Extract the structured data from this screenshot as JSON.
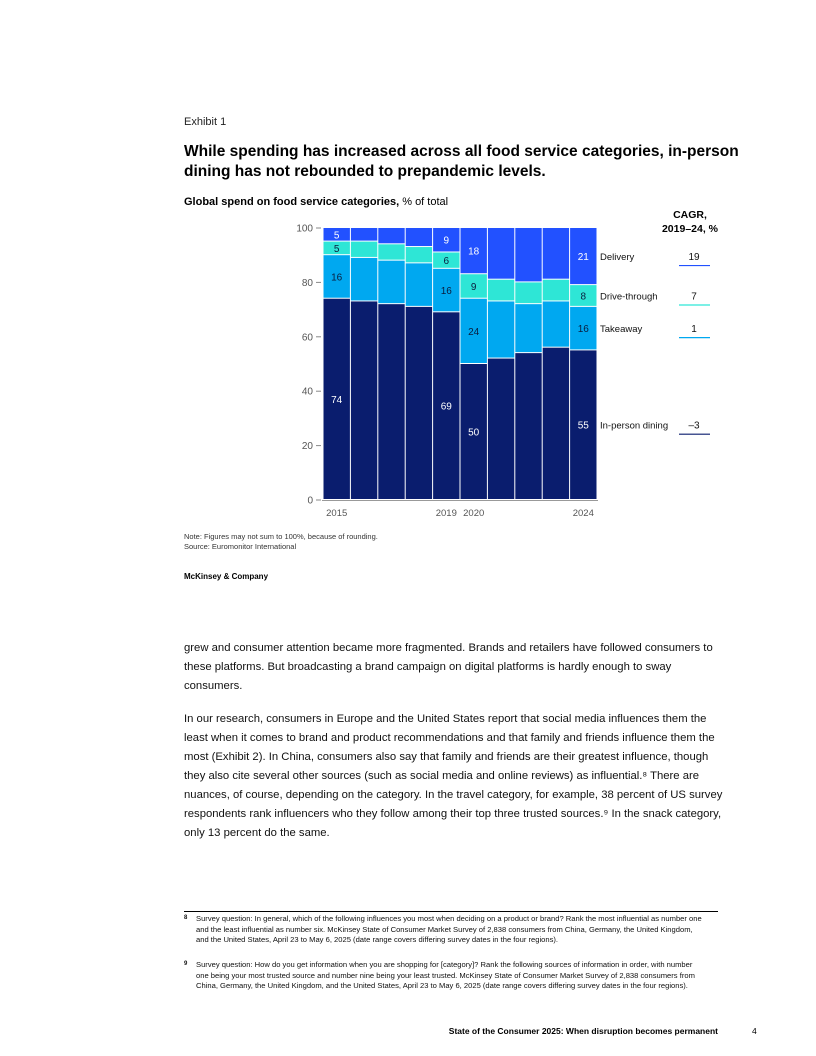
{
  "exhibit_label": "Exhibit 1",
  "title": "While spending has increased across all food service categories, in-person dining has not rebounded to prepandemic levels.",
  "subtitle_bold": "Global spend on food service categories,",
  "subtitle_rest": " % of total",
  "cagr_header": [
    "CAGR,",
    "2019–24, %"
  ],
  "chart_data": {
    "type": "bar",
    "stacked": true,
    "title": "Global spend on food service categories, % of total",
    "categories": [
      "2015",
      "2016",
      "2017",
      "2018",
      "2019",
      "2020",
      "2021",
      "2022",
      "2023",
      "2024"
    ],
    "x_tick_labels": [
      "2015",
      "",
      "",
      "",
      "2019",
      "2020",
      "",
      "",
      "",
      "2024"
    ],
    "ylim": [
      0,
      100
    ],
    "y_ticks": [
      0,
      20,
      40,
      60,
      80,
      100
    ],
    "grid": false,
    "series": [
      {
        "name": "In-person dining",
        "color": "#0a1d6e",
        "label_color": "#ffffff",
        "cagr": "–3",
        "values": [
          74,
          73,
          72,
          71,
          69,
          50,
          52,
          54,
          56,
          55
        ],
        "labels": [
          "74",
          null,
          null,
          null,
          "69",
          "50",
          null,
          null,
          null,
          "55"
        ]
      },
      {
        "name": "Takeaway",
        "color": "#00a8f0",
        "label_color": "#0a1d3e",
        "cagr": "1",
        "values": [
          16,
          16,
          16,
          16,
          16,
          24,
          21,
          18,
          17,
          16
        ],
        "labels": [
          "16",
          null,
          null,
          null,
          "16",
          "24",
          null,
          null,
          null,
          "16"
        ]
      },
      {
        "name": "Drive-through",
        "color": "#2ee6d6",
        "label_color": "#0a1d3e",
        "cagr": "7",
        "values": [
          5,
          6,
          6,
          6,
          6,
          9,
          8,
          8,
          8,
          8
        ],
        "labels": [
          "5",
          null,
          null,
          null,
          "6",
          "9",
          null,
          null,
          null,
          "8"
        ]
      },
      {
        "name": "Delivery",
        "color": "#2251ff",
        "label_color": "#ffffff",
        "cagr": "19",
        "values": [
          5,
          5,
          6,
          7,
          9,
          18,
          19,
          20,
          20,
          21
        ],
        "labels": [
          "5",
          null,
          null,
          null,
          "9",
          "18",
          null,
          null,
          null,
          "21"
        ]
      }
    ]
  },
  "note": "Note: Figures may not sum to 100%, because of rounding.",
  "source": "Source: Euromonitor International",
  "brand": "McKinsey & Company",
  "body": [
    "grew and consumer attention became more fragmented. Brands and retailers have followed consumers to these platforms. But broadcasting a brand campaign on digital platforms is hardly enough to sway consumers.",
    "In our research, consumers in Europe and the United States report that social media influences them the least when it comes to brand and product recommendations and that family and friends influence them the most (Exhibit 2). In China, consumers also say that family and friends are their greatest influence, though they also cite several other sources (such as social media and online reviews) as influential.⁸ There are nuances, of course, depending on the category. In the travel category, for example, 38 percent of US survey respondents rank influencers who they follow among their top three trusted sources.⁹ In the snack category, only 13 percent do the same."
  ],
  "footnotes": [
    {
      "num": "8",
      "text": "Survey question: In general, which of the following influences you most when deciding on a product or brand? Rank the most influential as number one and the least influential as number six. McKinsey State of Consumer Market Survey of 2,838 consumers from China, Germany, the United Kingdom, and the United States, April 23 to May 6, 2025 (date range covers differing survey dates in the four regions)."
    },
    {
      "num": "9",
      "text": "Survey question: How do you get information when you are shopping for [category]? Rank the following sources of information in order, with number one being your most trusted source and number nine being your least trusted. McKinsey State of Consumer Market Survey of 2,838 consumers from China, Germany, the United Kingdom, and the United States, April 23 to May 6, 2025 (date range covers differing survey dates in the four regions)."
    }
  ],
  "footer": "State of the Consumer 2025: When disruption becomes permanent",
  "page_number": "4"
}
